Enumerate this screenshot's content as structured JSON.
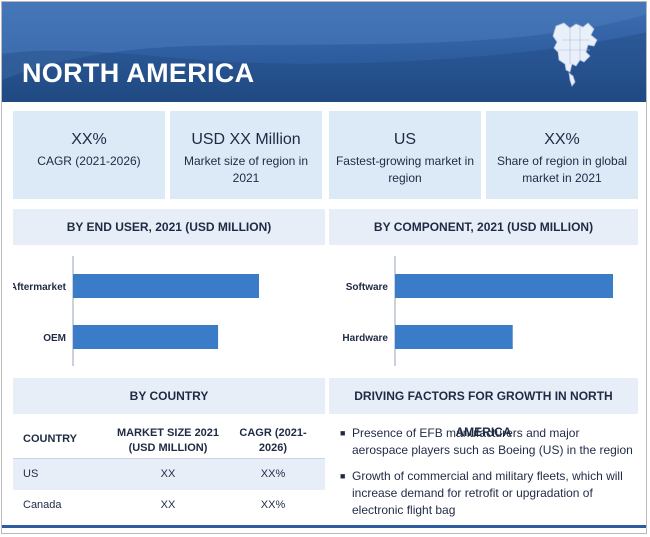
{
  "header": {
    "title": "NORTH AMERICA",
    "map_icon": "north-america-map-icon"
  },
  "kpis": [
    {
      "value": "XX%",
      "label": "CAGR (2021-2026)"
    },
    {
      "value": "USD XX Million",
      "label": "Market size of region in 2021"
    },
    {
      "value": "US",
      "label": "Fastest-growing market in region"
    },
    {
      "value": "XX%",
      "label": "Share of region in global market in 2021"
    }
  ],
  "sections": {
    "end_user": "BY END USER, 2021 (USD MILLION)",
    "component": "BY COMPONENT, 2021 (USD MILLION)",
    "country": "BY COUNTRY",
    "factors": "DRIVING FACTORS FOR GROWTH IN NORTH AMERICA"
  },
  "chart_data": [
    {
      "type": "bar",
      "orientation": "horizontal",
      "title": "BY END USER, 2021 (USD MILLION)",
      "categories": [
        "Aftermarket",
        "OEM"
      ],
      "values": [
        1.0,
        0.78
      ],
      "xlabel": "",
      "ylabel": "",
      "color": "#3b7cc9",
      "grid": false
    },
    {
      "type": "bar",
      "orientation": "horizontal",
      "title": "BY COMPONENT, 2021 (USD MILLION)",
      "categories": [
        "Software",
        "Hardware"
      ],
      "values": [
        1.0,
        0.54
      ],
      "xlabel": "",
      "ylabel": "",
      "color": "#3b7cc9",
      "grid": false
    }
  ],
  "country_table": {
    "headers": [
      "COUNTRY",
      "MARKET SIZE 2021 (USD MILLION)",
      "CAGR (2021-2026)"
    ],
    "rows": [
      [
        "US",
        "XX",
        "XX%"
      ],
      [
        "Canada",
        "XX",
        "XX%"
      ]
    ]
  },
  "factors": [
    "Presence of EFB manufacturers and major aerospace players such as Boeing (US) in the region",
    "Growth of commercial and military fleets, which will increase demand for retrofit or upgradation of electronic flight bag"
  ],
  "colors": {
    "banner": "#2e5d9f",
    "kpi_bg": "#dce9f6",
    "section_bg": "#e7eef8",
    "bar": "#3b7cc9",
    "text": "#1f2a44"
  }
}
